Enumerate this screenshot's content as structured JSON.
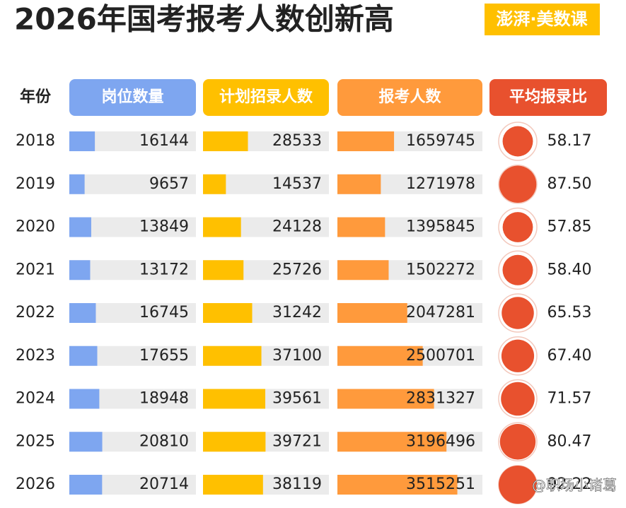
{
  "chart_data": {
    "type": "table-bar",
    "title": "2026年国考报考人数创新高",
    "source": "澎湃·美数课",
    "watermark": "@职场小诸葛",
    "category_label": "年份",
    "categories": [
      "2018",
      "2019",
      "2020",
      "2021",
      "2022",
      "2023",
      "2024",
      "2025",
      "2026"
    ],
    "series": [
      {
        "name": "岗位数量",
        "color": "#7ea6f0",
        "xlim": [
          0,
          80000
        ],
        "values": [
          16144,
          9657,
          13849,
          13172,
          16745,
          17655,
          18948,
          20810,
          20714
        ]
      },
      {
        "name": "计划招录人数",
        "color": "#ffc000",
        "xlim": [
          0,
          80000
        ],
        "values": [
          28533,
          14537,
          24128,
          25726,
          31242,
          37100,
          39561,
          39721,
          38119
        ]
      },
      {
        "name": "报考人数",
        "color": "#ff9a3c",
        "xlim": [
          0,
          4250000
        ],
        "values": [
          1659745,
          1271978,
          1395845,
          1502272,
          2047281,
          2500701,
          2831327,
          3196496,
          3515251
        ]
      },
      {
        "name": "平均报录比",
        "color": "#e8512e",
        "mark": "circle",
        "values": [
          58.17,
          87.5,
          57.85,
          58.4,
          65.53,
          67.4,
          71.57,
          80.47,
          92.22
        ],
        "value_labels": [
          "58.17",
          "87.50",
          "57.85",
          "58.40",
          "65.53",
          "67.40",
          "71.57",
          "80.47",
          "92.22"
        ]
      }
    ]
  }
}
